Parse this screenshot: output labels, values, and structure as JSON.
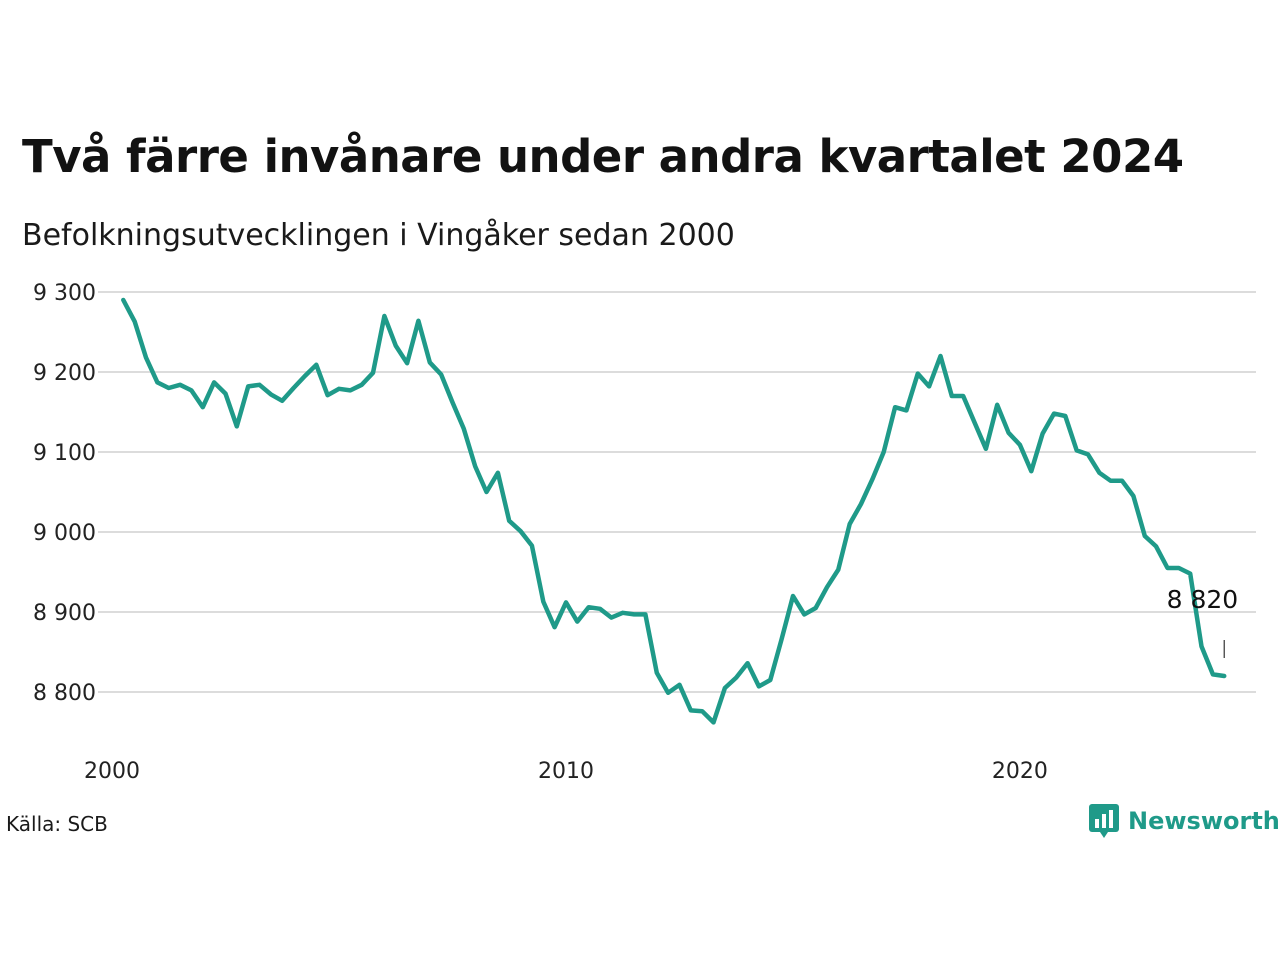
{
  "title": "Två färre invånare under andra kvartalet 2024",
  "subtitle": "Befolkningsutvecklingen i Vingåker sedan 2000",
  "source": "Källa: SCB",
  "brand": "Newsworthy",
  "colors": {
    "line": "#1f9a89",
    "grid": "#dcdcdc",
    "brand": "#1f9a89"
  },
  "chart_data": {
    "type": "line",
    "title": "Två färre invånare under andra kvartalet 2024",
    "subtitle": "Befolkningsutvecklingen i Vingåker sedan 2000",
    "xlabel": "",
    "ylabel": "",
    "xlim": [
      2000,
      2025.2
    ],
    "ylim": [
      8750,
      9300
    ],
    "grid": true,
    "x_ticks": [
      {
        "value": 2000,
        "label": "2000"
      },
      {
        "value": 2010,
        "label": "2010"
      },
      {
        "value": 2020,
        "label": "2020"
      }
    ],
    "y_ticks": [
      {
        "value": 8800,
        "label": "8 800"
      },
      {
        "value": 8900,
        "label": "8 900"
      },
      {
        "value": 9000,
        "label": "9 000"
      },
      {
        "value": 9100,
        "label": "9 100"
      },
      {
        "value": 9200,
        "label": "9 200"
      },
      {
        "value": 9300,
        "label": "9 300"
      }
    ],
    "end_label": {
      "text": "8 820",
      "value": 8820
    },
    "series": [
      {
        "x": [
          2000.25,
          2000.5,
          2000.75,
          2001,
          2001.25,
          2001.5,
          2001.75,
          2002,
          2002.25,
          2002.5,
          2002.75,
          2003,
          2003.25,
          2003.5,
          2003.75,
          2004,
          2004.25,
          2004.5,
          2004.75,
          2005,
          2005.25,
          2005.5,
          2005.75,
          2006,
          2006.25,
          2006.5,
          2006.75,
          2007,
          2007.25,
          2007.5,
          2007.75,
          2008,
          2008.25,
          2008.5,
          2008.75,
          2009,
          2009.25,
          2009.5,
          2009.75,
          2010,
          2010.25,
          2010.5,
          2010.75,
          2011,
          2011.25,
          2011.5,
          2011.75,
          2012,
          2012.25,
          2012.5,
          2012.75,
          2013,
          2013.25,
          2013.5,
          2013.75,
          2014,
          2014.25,
          2014.5,
          2014.75,
          2015,
          2015.25,
          2015.5,
          2015.75,
          2016,
          2016.25,
          2016.5,
          2016.75,
          2017,
          2017.25,
          2017.5,
          2017.75,
          2018,
          2018.25,
          2018.5,
          2018.75,
          2019,
          2019.25,
          2019.5,
          2019.75,
          2020,
          2020.25,
          2020.5,
          2020.75,
          2021,
          2021.25,
          2021.5,
          2021.75,
          2022,
          2022.25,
          2022.5,
          2022.75,
          2023,
          2023.25,
          2023.5,
          2023.75,
          2024,
          2024.25,
          2024.5
        ],
        "values": [
          9290,
          9263,
          9218,
          9187,
          9180,
          9184,
          9177,
          9156,
          9187,
          9173,
          9132,
          9182,
          9184,
          9172,
          9164,
          9180,
          9195,
          9209,
          9171,
          9179,
          9177,
          9184,
          9199,
          9270,
          9233,
          9211,
          9264,
          9212,
          9197,
          9162,
          9129,
          9082,
          9050,
          9074,
          9014,
          9001,
          8983,
          8913,
          8881,
          8912,
          8888,
          8906,
          8904,
          8893,
          8899,
          8897,
          8897,
          8824,
          8799,
          8809,
          8777,
          8776,
          8762,
          8805,
          8818,
          8836,
          8807,
          8815,
          8866,
          8920,
          8897,
          8905,
          8931,
          8953,
          9010,
          9035,
          9066,
          9100,
          9156,
          9152,
          9198,
          9182,
          9220,
          9170,
          9170,
          9137,
          9104,
          9159,
          9124,
          9109,
          9076,
          9123,
          9148,
          9145,
          9102,
          9097,
          9074,
          9064,
          9064,
          9045,
          8995,
          8982,
          8955,
          8955,
          8948,
          8857,
          8822,
          8820
        ]
      }
    ]
  }
}
